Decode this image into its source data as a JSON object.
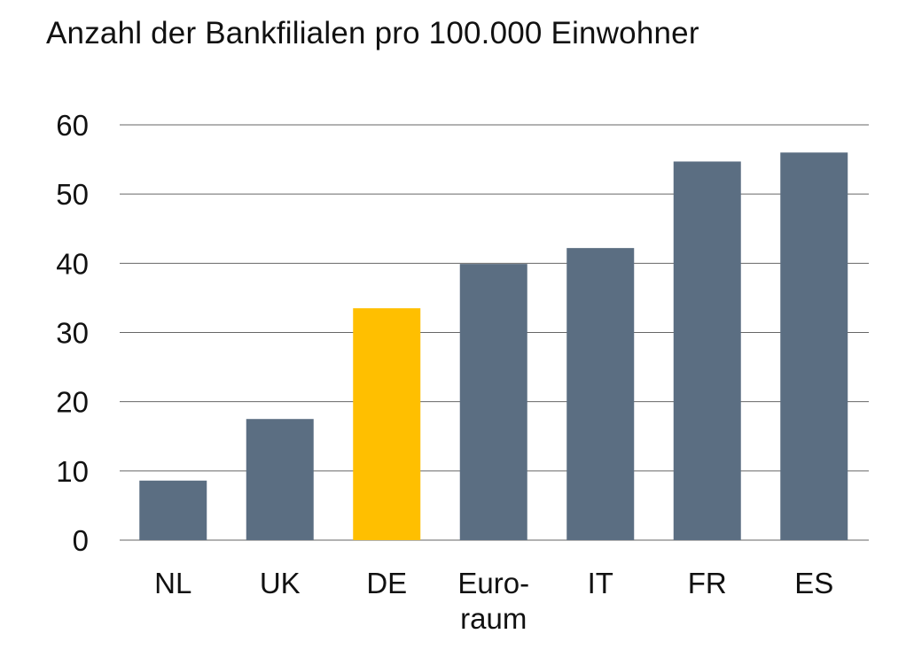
{
  "chart_data": {
    "type": "bar",
    "title": "Anzahl der Bankfilialen pro 100.000 Einwohner",
    "xlabel": "",
    "ylabel": "",
    "categories": [
      "NL",
      "UK",
      "DE",
      "Euro-\nraum",
      "IT",
      "FR",
      "ES"
    ],
    "values": [
      8.6,
      17.5,
      33.5,
      39.9,
      42.2,
      54.7,
      56.0
    ],
    "ylim": [
      0,
      60
    ],
    "yticks": [
      "0",
      "10",
      "20",
      "30",
      "40",
      "50",
      "60"
    ],
    "grid": true,
    "colors": {
      "default": "#5b6e82",
      "highlight": "#ffbf00",
      "highlight_category": "DE",
      "gridline": "#666666"
    }
  }
}
